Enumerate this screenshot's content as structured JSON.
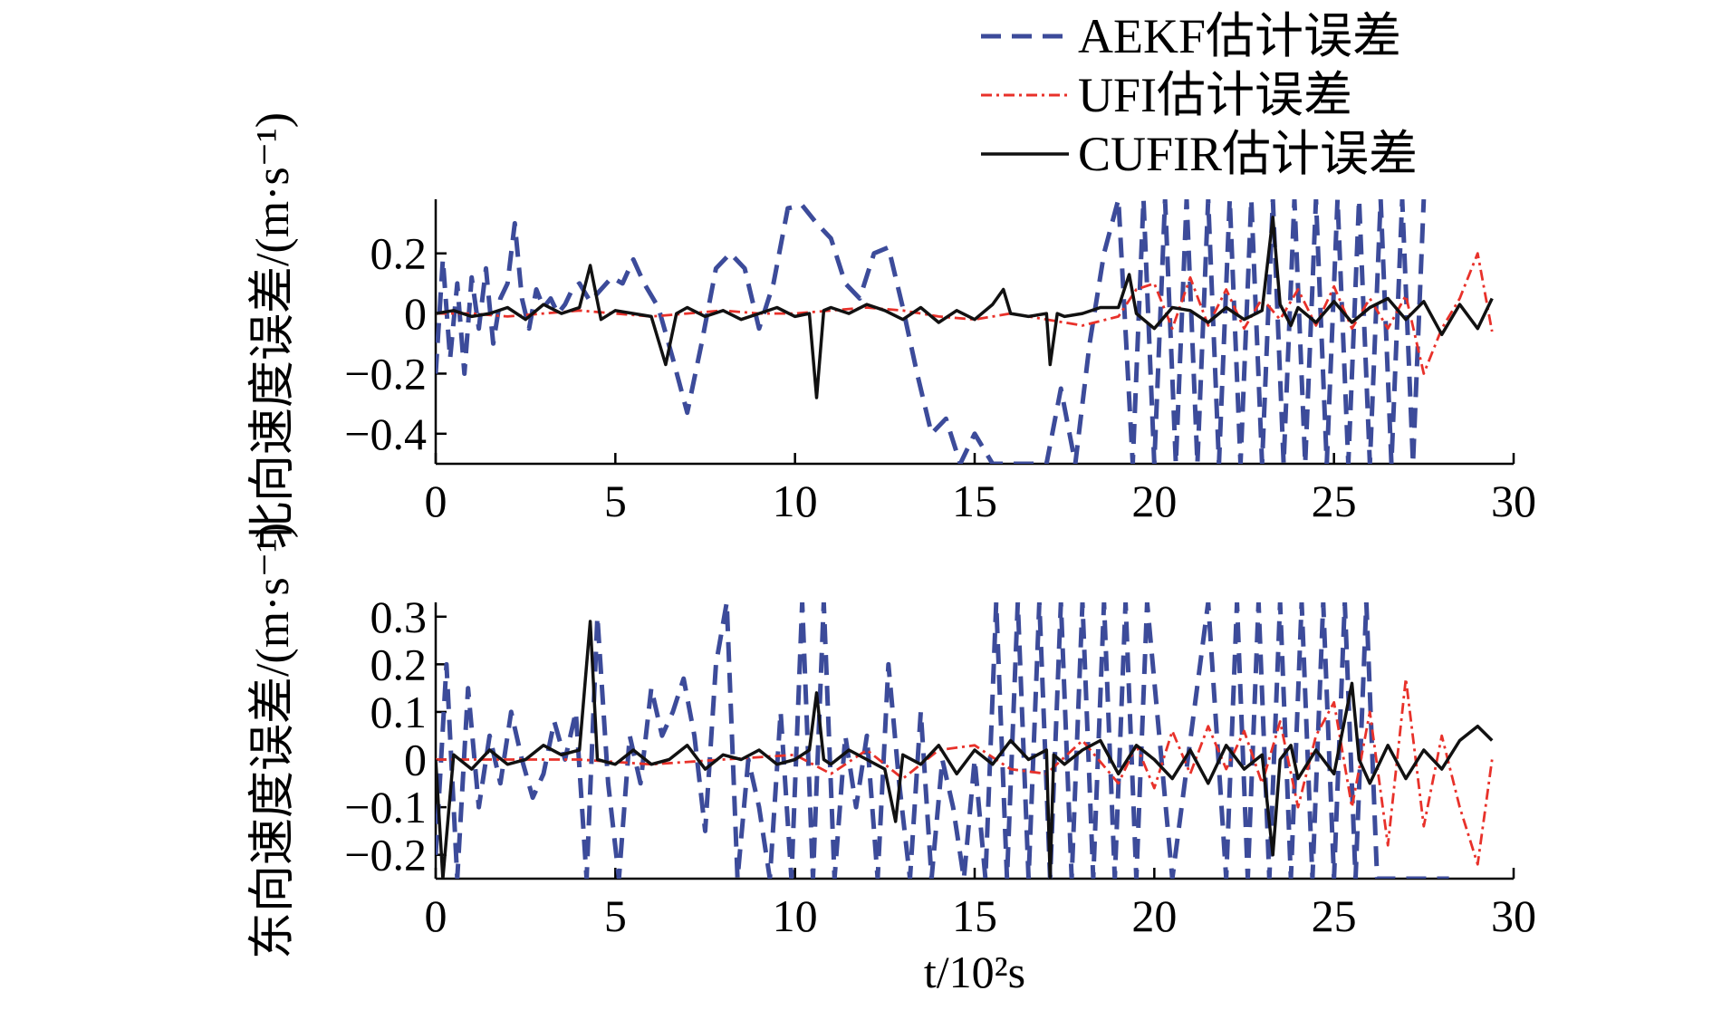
{
  "chart_data": [
    {
      "type": "line",
      "panel": "top",
      "ylabel": "北向速度误差/(m·s⁻¹)",
      "xlim": [
        0,
        30
      ],
      "ylim": [
        -0.5,
        0.38
      ],
      "xticks": [
        0,
        5,
        10,
        15,
        20,
        25,
        30
      ],
      "yticks": [
        -0.4,
        -0.2,
        0,
        0.2
      ],
      "ytick_labels": [
        "−0.4",
        "−0.2",
        "0",
        "0.2"
      ],
      "series": [
        {
          "name": "AEKF估计误差",
          "color": "#3c4b9a",
          "style": "dashed",
          "x": [
            0,
            0.2,
            0.4,
            0.6,
            0.8,
            1.0,
            1.2,
            1.4,
            1.6,
            1.8,
            2.0,
            2.2,
            2.4,
            2.6,
            2.8,
            3.0,
            3.2,
            3.4,
            3.6,
            3.8,
            4.0,
            4.3,
            4.6,
            4.9,
            5.2,
            5.5,
            5.8,
            6.2,
            6.6,
            7.0,
            7.4,
            7.8,
            8.2,
            8.6,
            9.0,
            9.4,
            9.8,
            10.2,
            10.6,
            11.0,
            11.4,
            11.8,
            12.2,
            12.6,
            13.0,
            13.4,
            13.8,
            14.2,
            14.6,
            15.0,
            15.5,
            16.0,
            16.5,
            17.0,
            17.4,
            17.8,
            18.2,
            18.6,
            19.0,
            19.4,
            19.7,
            20.0,
            20.3,
            20.6,
            20.9,
            21.2,
            21.5,
            21.8,
            22.1,
            22.4,
            22.7,
            23.0,
            23.3,
            23.6,
            23.9,
            24.2,
            24.5,
            24.8,
            25.1,
            25.4,
            25.7,
            26.0,
            26.3,
            26.6,
            26.9,
            27.2,
            27.5
          ],
          "y": [
            -0.2,
            0.18,
            -0.15,
            0.1,
            -0.2,
            0.12,
            -0.05,
            0.15,
            -0.1,
            0.05,
            0.1,
            0.3,
            0.05,
            -0.05,
            0.08,
            0.02,
            0.05,
            0.0,
            0.03,
            0.08,
            0.1,
            0.04,
            0.08,
            0.12,
            0.1,
            0.18,
            0.1,
            0.02,
            -0.15,
            -0.33,
            -0.1,
            0.15,
            0.2,
            0.15,
            -0.05,
            0.1,
            0.35,
            0.36,
            0.3,
            0.25,
            0.1,
            0.05,
            0.2,
            0.22,
            0.02,
            -0.2,
            -0.4,
            -0.35,
            -0.5,
            -0.4,
            -0.5,
            -0.5,
            -0.5,
            -0.5,
            -0.25,
            -0.5,
            -0.1,
            0.2,
            0.38,
            -0.5,
            0.38,
            -0.5,
            0.38,
            -0.5,
            0.38,
            -0.5,
            0.38,
            -0.5,
            0.38,
            -0.5,
            0.38,
            -0.5,
            0.38,
            -0.5,
            0.38,
            -0.5,
            0.38,
            -0.5,
            0.38,
            -0.5,
            0.38,
            -0.5,
            0.38,
            -0.5,
            0.38,
            -0.5,
            0.38
          ]
        },
        {
          "name": "UFI估计误差",
          "color": "#e8312a",
          "style": "dashdot",
          "x": [
            0,
            1,
            2,
            3,
            4,
            5,
            6,
            7,
            8,
            9,
            10,
            11,
            12,
            13,
            14,
            15,
            16,
            17,
            18,
            19,
            19.5,
            20,
            20.5,
            21,
            21.5,
            22,
            22.5,
            23,
            23.5,
            24,
            24.5,
            25,
            25.5,
            26,
            26.5,
            27,
            27.5,
            28,
            28.5,
            29,
            29.4
          ],
          "y": [
            0,
            0.0,
            -0.01,
            0.0,
            0.01,
            0.0,
            -0.01,
            0.0,
            0.01,
            0.0,
            0.0,
            0.01,
            0.02,
            0.01,
            -0.01,
            -0.02,
            0.0,
            -0.02,
            -0.04,
            -0.01,
            0.08,
            0.1,
            -0.05,
            0.12,
            -0.04,
            0.08,
            -0.05,
            0.05,
            -0.02,
            0.08,
            -0.04,
            0.09,
            -0.05,
            0.05,
            -0.05,
            0.06,
            -0.2,
            -0.05,
            0.05,
            0.2,
            -0.06
          ]
        },
        {
          "name": "CUFIR估计误差",
          "color": "#111111",
          "style": "solid",
          "x": [
            0,
            0.5,
            1,
            1.5,
            2,
            2.5,
            3,
            3.5,
            4,
            4.3,
            4.6,
            5,
            5.5,
            6,
            6.4,
            6.7,
            7,
            7.5,
            8,
            8.5,
            9,
            9.5,
            10,
            10.4,
            10.6,
            10.8,
            11,
            11.5,
            12,
            12.5,
            13,
            13.5,
            14,
            14.5,
            15,
            15.5,
            15.8,
            16,
            16.5,
            17,
            17.1,
            17.3,
            17.5,
            18,
            18.5,
            19,
            19.3,
            19.5,
            20,
            20.5,
            21,
            21.5,
            22,
            22.5,
            23,
            23.3,
            23.5,
            23.8,
            24,
            24.5,
            25,
            25.5,
            26,
            26.5,
            27,
            27.5,
            28,
            28.5,
            29,
            29.4
          ],
          "y": [
            0,
            0.01,
            -0.01,
            0.0,
            0.02,
            -0.02,
            0.03,
            0.0,
            0.02,
            0.16,
            -0.02,
            0.01,
            0.0,
            -0.01,
            -0.17,
            0.0,
            0.02,
            -0.01,
            0.01,
            -0.02,
            0.0,
            0.02,
            -0.01,
            0.0,
            -0.28,
            0.01,
            0.02,
            0.0,
            0.03,
            0.01,
            -0.02,
            0.02,
            -0.03,
            0.01,
            -0.02,
            0.03,
            0.08,
            0.0,
            -0.01,
            0.0,
            -0.17,
            0.0,
            -0.01,
            0.0,
            0.02,
            0.02,
            0.13,
            0.0,
            -0.05,
            0.02,
            0.01,
            -0.03,
            0.02,
            -0.02,
            0.01,
            0.32,
            0.03,
            -0.04,
            0.02,
            -0.03,
            0.04,
            -0.03,
            0.02,
            0.05,
            -0.02,
            0.04,
            -0.07,
            0.03,
            -0.05,
            0.05
          ]
        }
      ]
    },
    {
      "type": "line",
      "panel": "bottom",
      "ylabel": "东向速度误差/(m·s⁻¹)",
      "xlabel": "t/10²s",
      "xlim": [
        0,
        30
      ],
      "ylim": [
        -0.25,
        0.33
      ],
      "xticks": [
        0,
        5,
        10,
        15,
        20,
        25,
        30
      ],
      "yticks": [
        -0.2,
        -0.1,
        0,
        0.1,
        0.2,
        0.3
      ],
      "ytick_labels": [
        "−0.2",
        "−0.1",
        "0",
        "0.1",
        "0.2",
        "0.3"
      ],
      "series": [
        {
          "name": "AEKF估计误差",
          "color": "#3c4b9a",
          "style": "dashed",
          "x": [
            0,
            0.3,
            0.6,
            0.9,
            1.2,
            1.5,
            1.8,
            2.1,
            2.4,
            2.7,
            3.0,
            3.3,
            3.6,
            3.9,
            4.2,
            4.5,
            4.8,
            5.1,
            5.4,
            5.7,
            6.0,
            6.3,
            6.6,
            6.9,
            7.2,
            7.5,
            7.8,
            8.1,
            8.4,
            8.7,
            9.0,
            9.3,
            9.6,
            9.9,
            10.2,
            10.5,
            10.8,
            11.1,
            11.4,
            11.7,
            12.0,
            12.3,
            12.6,
            12.9,
            13.2,
            13.5,
            13.8,
            14.1,
            14.4,
            14.7,
            15.0,
            15.3,
            15.6,
            15.9,
            16.2,
            16.5,
            16.8,
            17.1,
            17.4,
            17.7,
            18.0,
            18.3,
            18.6,
            18.9,
            19.2,
            19.5,
            19.8,
            20.5,
            21.5,
            22.0,
            22.3,
            22.6,
            22.9,
            23.2,
            23.5,
            23.8,
            24.1,
            24.4,
            24.7,
            25.0,
            25.3,
            25.6,
            25.9,
            26.2,
            28.2
          ],
          "y": [
            -0.2,
            0.2,
            -0.25,
            0.15,
            -0.1,
            0.05,
            -0.05,
            0.1,
            0.0,
            -0.08,
            -0.03,
            0.08,
            0.0,
            0.1,
            -0.25,
            0.3,
            -0.05,
            -0.25,
            0.05,
            -0.05,
            0.15,
            0.05,
            0.1,
            0.17,
            0.05,
            -0.15,
            0.2,
            0.33,
            -0.25,
            0.0,
            -0.1,
            -0.25,
            0.1,
            -0.25,
            0.33,
            -0.25,
            0.33,
            -0.25,
            0.05,
            -0.1,
            0.05,
            -0.25,
            0.2,
            -0.05,
            -0.25,
            0.1,
            -0.25,
            0.0,
            -0.1,
            -0.25,
            0.0,
            -0.25,
            0.33,
            -0.25,
            0.33,
            -0.25,
            0.33,
            -0.25,
            0.33,
            -0.25,
            0.33,
            -0.25,
            0.33,
            -0.25,
            0.33,
            -0.25,
            0.33,
            -0.25,
            0.33,
            -0.25,
            0.33,
            -0.25,
            0.33,
            -0.25,
            0.33,
            -0.25,
            0.33,
            -0.25,
            0.33,
            -0.25,
            0.33,
            -0.25,
            0.33,
            -0.25,
            -0.25
          ]
        },
        {
          "name": "UFI估计误差",
          "color": "#e8312a",
          "style": "dashdot",
          "x": [
            0,
            2,
            4,
            6,
            8,
            10,
            11,
            12,
            13,
            14,
            15,
            16,
            17,
            18,
            19,
            19.5,
            20,
            20.5,
            21,
            21.5,
            22,
            22.5,
            23,
            23.5,
            24,
            24.5,
            25,
            25.5,
            26,
            26.5,
            27,
            27.5,
            28,
            28.5,
            29,
            29.4
          ],
          "y": [
            0,
            0.0,
            0.0,
            -0.01,
            0.0,
            0.01,
            -0.03,
            0.02,
            -0.04,
            0.02,
            0.03,
            -0.02,
            -0.03,
            0.04,
            -0.05,
            0.03,
            -0.06,
            0.06,
            -0.03,
            0.07,
            -0.02,
            0.06,
            -0.05,
            0.08,
            -0.1,
            0.05,
            0.12,
            -0.1,
            0.1,
            -0.18,
            0.17,
            -0.14,
            0.05,
            -0.1,
            -0.22,
            0.0
          ]
        },
        {
          "name": "CUFIR估计误差",
          "color": "#111111",
          "style": "solid",
          "x": [
            0,
            0.2,
            0.5,
            1,
            1.5,
            2,
            2.5,
            3,
            3.5,
            4,
            4.3,
            4.5,
            5,
            5.5,
            6,
            6.5,
            7,
            7.5,
            8,
            8.5,
            9,
            9.5,
            10,
            10.4,
            10.6,
            10.8,
            11,
            11.5,
            12,
            12.5,
            12.8,
            13,
            13.5,
            14,
            14.5,
            15,
            15.5,
            16,
            16.5,
            17,
            17.1,
            17.2,
            17.5,
            18,
            18.5,
            19,
            19.5,
            20,
            20.5,
            21,
            21.5,
            22,
            22.5,
            23,
            23.3,
            23.5,
            23.8,
            24,
            24.5,
            25,
            25.5,
            25.7,
            26,
            26.5,
            27,
            27.5,
            28,
            28.5,
            29,
            29.4
          ],
          "y": [
            0,
            -0.25,
            0.01,
            -0.02,
            0.02,
            -0.01,
            0.0,
            0.03,
            0.01,
            0.02,
            0.29,
            0.0,
            -0.01,
            0.02,
            -0.01,
            0.0,
            0.03,
            -0.02,
            0.01,
            0.0,
            0.02,
            -0.01,
            0.0,
            0.02,
            0.14,
            0.0,
            -0.01,
            0.02,
            0.0,
            -0.02,
            -0.13,
            0.01,
            -0.01,
            0.03,
            -0.03,
            0.02,
            -0.01,
            0.04,
            0.0,
            0.02,
            -0.25,
            0.01,
            -0.01,
            0.02,
            0.04,
            -0.03,
            0.03,
            0.0,
            -0.04,
            0.02,
            -0.05,
            0.03,
            -0.02,
            0.01,
            -0.2,
            0.0,
            0.03,
            -0.04,
            0.02,
            -0.03,
            0.16,
            0.0,
            -0.05,
            0.03,
            -0.04,
            0.02,
            -0.02,
            0.04,
            0.07,
            0.04
          ]
        }
      ]
    }
  ],
  "legend": {
    "position": "top-right",
    "entries": [
      {
        "label": "AEKF估计误差",
        "color": "#3c4b9a",
        "style": "dashed"
      },
      {
        "label": "UFI估计误差",
        "color": "#e8312a",
        "style": "dashdot"
      },
      {
        "label": "CUFIR估计误差",
        "color": "#111111",
        "style": "solid"
      }
    ]
  }
}
